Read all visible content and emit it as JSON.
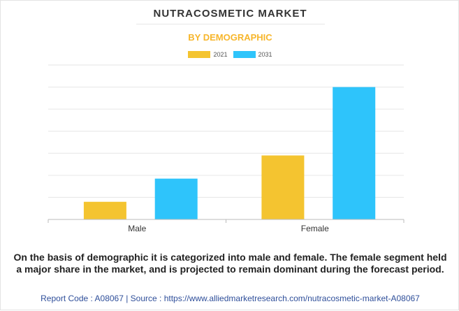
{
  "header": {
    "title": "NUTRACOSMETIC MARKET",
    "subtitle": "BY DEMOGRAPHIC"
  },
  "colors": {
    "accent": "#f7b62b",
    "series_2021": "#f4c430",
    "series_2031": "#2ec4fb",
    "grid": "#e6e6e6",
    "axis": "#bbbbbb"
  },
  "chart_data": {
    "type": "bar",
    "categories": [
      "Male",
      "Female"
    ],
    "series": [
      {
        "name": "2021",
        "values": [
          0.8,
          2.9
        ]
      },
      {
        "name": "2031",
        "values": [
          1.85,
          6.0
        ]
      }
    ],
    "ylim": [
      0,
      7
    ],
    "y_tick_values": [
      0,
      1,
      2,
      3,
      4,
      5,
      6,
      7
    ],
    "y_tick_labels_shown": false,
    "grid": true,
    "legend_position": "top-center",
    "title": "NUTRACOSMETIC MARKET",
    "subtitle": "BY DEMOGRAPHIC"
  },
  "description": "On the basis of demographic it is categorized into male and female. The female segment held a major share in the market, and is projected to remain dominant during the forecast period.",
  "footer": "Report Code : A08067  |  Source : https://www.alliedmarketresearch.com/nutracosmetic-market-A08067"
}
